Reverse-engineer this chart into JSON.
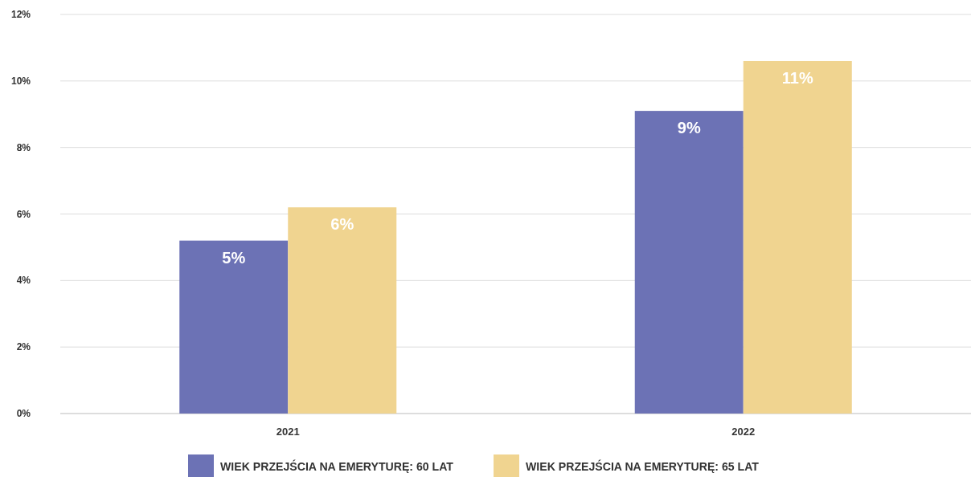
{
  "chart_data": {
    "type": "bar",
    "categories": [
      "2021",
      "2022"
    ],
    "series": [
      {
        "name": "WIEK PRZEJŚCIA NA EMERYTURĘ: 60 LAT",
        "color": "#6c72b5",
        "values": [
          5.2,
          9.1
        ],
        "value_labels": [
          "5%",
          "9%"
        ]
      },
      {
        "name": "WIEK PRZEJŚCIA NA EMERYTURĘ: 65 LAT",
        "color": "#f0d490",
        "values": [
          6.2,
          10.6
        ],
        "value_labels": [
          "6%",
          "11%"
        ]
      }
    ],
    "ylim": [
      0,
      12
    ],
    "yticks": [
      {
        "value": 0,
        "label": "0%"
      },
      {
        "value": 2,
        "label": "2%"
      },
      {
        "value": 4,
        "label": "4%"
      },
      {
        "value": 6,
        "label": "6%"
      },
      {
        "value": 8,
        "label": "8%"
      },
      {
        "value": 10,
        "label": "10%"
      },
      {
        "value": 12,
        "label": "12%"
      }
    ],
    "grid": "y",
    "legend": "bottom"
  }
}
